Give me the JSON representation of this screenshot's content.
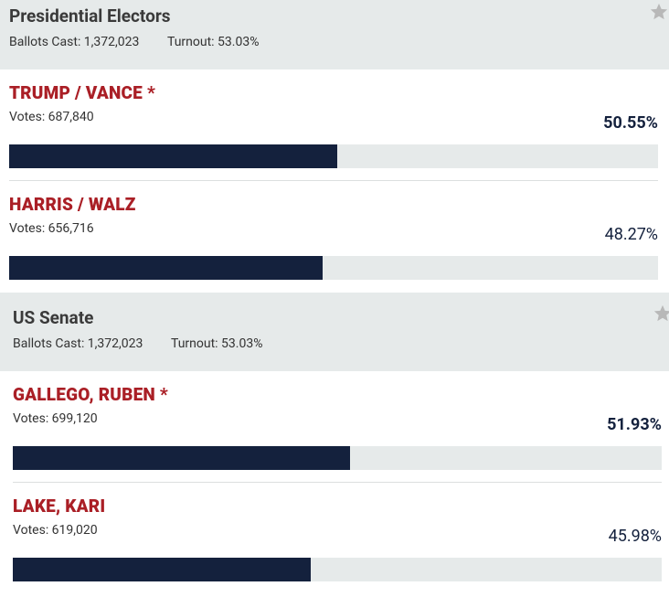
{
  "races": [
    {
      "title": "Presidential Electors",
      "ballots_cast": "Ballots Cast: 1,372,023",
      "turnout": "Turnout: 53.03%",
      "candidates": [
        {
          "name": "TRUMP / VANCE *",
          "votes": "Votes: 687,840",
          "percent": 50.55,
          "percent_label": "50.55%",
          "winner": true
        },
        {
          "name": "HARRIS / WALZ",
          "votes": "Votes: 656,716",
          "percent": 48.27,
          "percent_label": "48.27%",
          "winner": false
        }
      ]
    },
    {
      "title": "US Senate",
      "ballots_cast": "Ballots Cast: 1,372,023",
      "turnout": "Turnout: 53.03%",
      "candidates": [
        {
          "name": "GALLEGO, RUBEN *",
          "votes": "Votes: 699,120",
          "percent": 51.93,
          "percent_label": "51.93%",
          "winner": true
        },
        {
          "name": "LAKE, KARI",
          "votes": "Votes: 619,020",
          "percent": 45.98,
          "percent_label": "45.98%",
          "winner": false
        }
      ]
    }
  ]
}
